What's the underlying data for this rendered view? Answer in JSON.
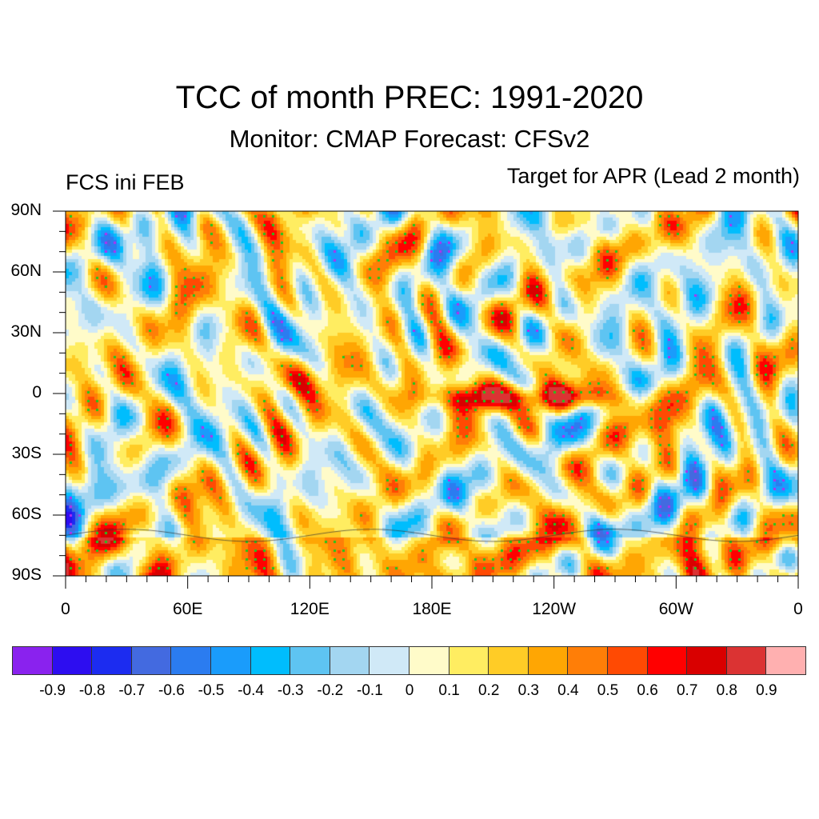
{
  "chart_data": {
    "type": "heatmap",
    "title": "TCC of month PREC: 1991-2020",
    "subtitle": "Monitor: CMAP   Forecast: CFSv2",
    "left_label": "FCS ini FEB",
    "right_label": "Target for APR (Lead 2 month)",
    "variable": "temporal correlation coefficient of monthly precipitation",
    "projection": "cylindrical equidistant, global, 0 to 360 longitude",
    "xlim": [
      0,
      360
    ],
    "ylim": [
      -90,
      90
    ],
    "x_ticks": [
      {
        "value": 0,
        "label": "0"
      },
      {
        "value": 60,
        "label": "60E"
      },
      {
        "value": 120,
        "label": "120E"
      },
      {
        "value": 180,
        "label": "180E"
      },
      {
        "value": 240,
        "label": "120W"
      },
      {
        "value": 300,
        "label": "60W"
      },
      {
        "value": 360,
        "label": "0"
      }
    ],
    "y_ticks": [
      {
        "value": 90,
        "label": "90N"
      },
      {
        "value": 60,
        "label": "60N"
      },
      {
        "value": 30,
        "label": "30N"
      },
      {
        "value": 0,
        "label": "0"
      },
      {
        "value": -30,
        "label": "30S"
      },
      {
        "value": -60,
        "label": "60S"
      },
      {
        "value": -90,
        "label": "90S"
      }
    ],
    "colorbar": {
      "levels": [
        -0.9,
        -0.8,
        -0.7,
        -0.6,
        -0.5,
        -0.4,
        -0.3,
        -0.2,
        -0.1,
        0,
        0.1,
        0.2,
        0.3,
        0.4,
        0.5,
        0.6,
        0.7,
        0.8,
        0.9
      ],
      "labels": [
        "-0.9",
        "-0.8",
        "-0.7",
        "-0.6",
        "-0.5",
        "-0.4",
        "-0.3",
        "-0.2",
        "-0.1",
        "0",
        "0.1",
        "0.2",
        "0.3",
        "0.4",
        "0.5",
        "0.6",
        "0.7",
        "0.8",
        "0.9"
      ],
      "colors": [
        "#8a22ee",
        "#2d0df0",
        "#1c2cf0",
        "#436ae0",
        "#2b7cf0",
        "#1a9cfb",
        "#00bdfd",
        "#5ec4f2",
        "#a3d6f1",
        "#d0e9f7",
        "#fffbc9",
        "#ffed61",
        "#ffcc26",
        "#ffa603",
        "#ff7e07",
        "#ff4a03",
        "#ff0000",
        "#d90000",
        "#db3333",
        "#ffb0b0"
      ]
    },
    "features": {
      "equatorial_pacific_max": {
        "lon_range": [
          170,
          280
        ],
        "lat_range": [
          -8,
          6
        ],
        "value_range": [
          0.6,
          0.9
        ]
      },
      "stippling": "green dots mark significant positive correlation; purple dots mark significant negative correlation"
    }
  }
}
